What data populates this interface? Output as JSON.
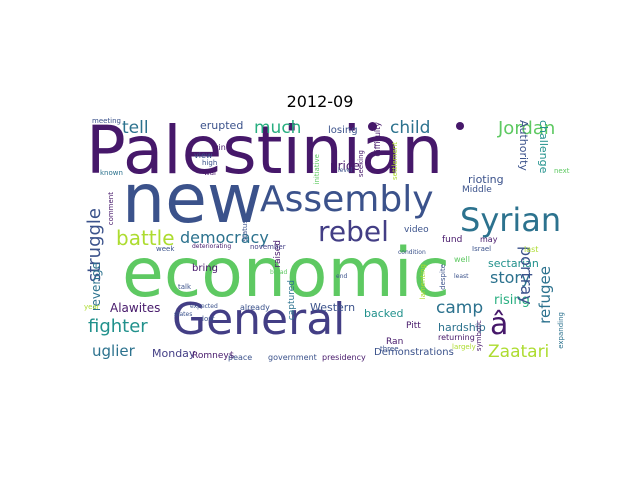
{
  "title": "2012-09",
  "colors": {
    "dark_purple": "#46186a",
    "indigo": "#433e85",
    "blue": "#3b528b",
    "teal_blue": "#2c728e",
    "teal": "#21918c",
    "green_teal": "#28ae80",
    "green": "#5ec962",
    "lime": "#addc30",
    "yellow": "#fde725"
  },
  "words": {
    "palestinian": "Palestinian",
    "economic": "economic",
    "new": "new",
    "general": "General",
    "assembly": "Assembly",
    "syrian": "Syrian",
    "rebel": "rebel",
    "a_hat": "â",
    "struggle": "struggle",
    "portray": "portray",
    "refugee": "refugee",
    "battle": "battle",
    "democracy": "democracy",
    "fighter": "fighter",
    "jordan": "Jordan",
    "child": "child",
    "much": "much",
    "tell": "tell",
    "story": "story",
    "camp": "camp",
    "zaatari": "Zaatari",
    "uglier": "uglier",
    "sectarian": "sectarian",
    "rising": "rising",
    "hardship": "hardship",
    "rioting": "rioting",
    "authority": "Authority",
    "challenge": "challenge",
    "price": "price",
    "erupted": "erupted",
    "losing": "losing",
    "alawites": "Alawites",
    "western": "Western",
    "backed": "backed",
    "monday": "Monday",
    "demonstrations": "Demonstrations",
    "revenge": "revenge",
    "ran": "Ran",
    "pitt": "Pitt",
    "raised": "raised",
    "video": "video",
    "fund": "fund",
    "middle": "Middle",
    "bring": "bring",
    "captured": "captured",
    "romney": "Romney$",
    "peace": "peace",
    "government": "government",
    "presidency": "presidency",
    "returning": "returning",
    "three": "three",
    "comment": "comment",
    "known": "known",
    "status": "status",
    "difficulty": "difficulty",
    "seeking": "seeking",
    "settlement": "settlement",
    "next": "next",
    "last": "last",
    "may": "may",
    "israel": "Israel",
    "well": "well",
    "largely": "largely",
    "expanding": "expanding",
    "meeting": "meeting",
    "win": "win",
    "view": "view",
    "high": "high",
    "war": "war",
    "week": "week",
    "talk": "talk",
    "november": "november",
    "deteriorating": "deteriorating",
    "already": "already",
    "lost": "lost",
    "states": "states",
    "broad": "broad",
    "end": "end",
    "lamenting": "lamenting",
    "condition": "condition",
    "least": "least",
    "despite": "despite",
    "symbolic": "symbolic",
    "level": "level",
    "initiative": "initiative",
    "year": "year",
    "expected": "expected"
  }
}
